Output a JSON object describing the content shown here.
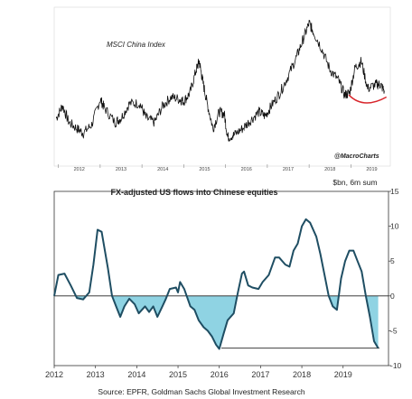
{
  "chart_data": [
    {
      "type": "line",
      "title": "MSCI China Index",
      "annotation": "@MacroCharts",
      "x_tick_labels": [
        "2012",
        "2013",
        "2014",
        "2015",
        "2016",
        "2017",
        "2018",
        "2019"
      ],
      "series": [
        {
          "values": [
            [
              2011.95,
              55
            ],
            [
              2012.1,
              61
            ],
            [
              2012.25,
              53
            ],
            [
              2012.45,
              50
            ],
            [
              2012.6,
              48
            ],
            [
              2012.8,
              52
            ],
            [
              2013.0,
              64
            ],
            [
              2013.1,
              60
            ],
            [
              2013.35,
              53
            ],
            [
              2013.5,
              55
            ],
            [
              2013.7,
              62
            ],
            [
              2013.95,
              62
            ],
            [
              2014.1,
              55
            ],
            [
              2014.3,
              53
            ],
            [
              2014.5,
              61
            ],
            [
              2014.7,
              65
            ],
            [
              2014.9,
              64
            ],
            [
              2015.0,
              63
            ],
            [
              2015.15,
              67
            ],
            [
              2015.3,
              78
            ],
            [
              2015.37,
              82
            ],
            [
              2015.45,
              73
            ],
            [
              2015.55,
              63
            ],
            [
              2015.7,
              50
            ],
            [
              2015.85,
              58
            ],
            [
              2015.97,
              57
            ],
            [
              2016.05,
              46
            ],
            [
              2016.2,
              47
            ],
            [
              2016.4,
              50
            ],
            [
              2016.6,
              54
            ],
            [
              2016.8,
              58
            ],
            [
              2016.95,
              56
            ],
            [
              2017.1,
              61
            ],
            [
              2017.3,
              67
            ],
            [
              2017.5,
              75
            ],
            [
              2017.7,
              84
            ],
            [
              2017.85,
              92
            ],
            [
              2018.0,
              100
            ],
            [
              2018.1,
              96
            ],
            [
              2018.3,
              88
            ],
            [
              2018.5,
              78
            ],
            [
              2018.7,
              73
            ],
            [
              2018.85,
              66
            ],
            [
              2018.97,
              67
            ],
            [
              2019.1,
              79
            ],
            [
              2019.25,
              82
            ],
            [
              2019.4,
              69
            ],
            [
              2019.6,
              71
            ],
            [
              2019.7,
              71
            ],
            [
              2019.8,
              68
            ]
          ]
        }
      ],
      "trend_curve_color": "#d8262c",
      "line_color": "#111111"
    },
    {
      "type": "area",
      "title": "FX-adjusted US flows into Chinese equities",
      "unit_label": "$bn, 6m sum",
      "x_tick_labels": [
        "2012",
        "2013",
        "2014",
        "2015",
        "2016",
        "2017",
        "2018",
        "2019"
      ],
      "y_tick_labels": [
        "15",
        "10",
        "5",
        "0",
        "-5",
        "-10"
      ],
      "xlim": [
        2012,
        2020.1
      ],
      "ylim": [
        -10,
        15
      ],
      "grid": false,
      "zero_line": true,
      "reference_level": -7.5,
      "series": [
        {
          "color": "#1f4e63",
          "fill_below_zero": "#8fd3e3",
          "values": [
            [
              2012.0,
              0
            ],
            [
              2012.1,
              3
            ],
            [
              2012.25,
              3.2
            ],
            [
              2012.4,
              1.5
            ],
            [
              2012.55,
              -0.3
            ],
            [
              2012.7,
              -0.5
            ],
            [
              2012.85,
              0.5
            ],
            [
              2012.95,
              4.5
            ],
            [
              2013.05,
              9.5
            ],
            [
              2013.15,
              9.2
            ],
            [
              2013.3,
              4
            ],
            [
              2013.4,
              0
            ],
            [
              2013.5,
              -1.5
            ],
            [
              2013.6,
              -3
            ],
            [
              2013.7,
              -1.5
            ],
            [
              2013.82,
              -0.4
            ],
            [
              2013.95,
              -1.2
            ],
            [
              2014.05,
              -2.5
            ],
            [
              2014.2,
              -1.5
            ],
            [
              2014.3,
              -2.3
            ],
            [
              2014.4,
              -1.5
            ],
            [
              2014.5,
              -3
            ],
            [
              2014.62,
              -1.5
            ],
            [
              2014.7,
              -0.5
            ],
            [
              2014.8,
              1
            ],
            [
              2014.95,
              1.2
            ],
            [
              2015.0,
              0.5
            ],
            [
              2015.05,
              2
            ],
            [
              2015.15,
              1
            ],
            [
              2015.3,
              -1.5
            ],
            [
              2015.4,
              -2
            ],
            [
              2015.5,
              -3.5
            ],
            [
              2015.62,
              -4.5
            ],
            [
              2015.72,
              -5
            ],
            [
              2015.82,
              -5.8
            ],
            [
              2015.92,
              -7
            ],
            [
              2016.0,
              -7.6
            ],
            [
              2016.1,
              -5.5
            ],
            [
              2016.2,
              -3.5
            ],
            [
              2016.35,
              -2.5
            ],
            [
              2016.45,
              0.5
            ],
            [
              2016.55,
              3.2
            ],
            [
              2016.6,
              3.5
            ],
            [
              2016.7,
              1.5
            ],
            [
              2016.8,
              1.2
            ],
            [
              2016.95,
              1
            ],
            [
              2017.05,
              2
            ],
            [
              2017.2,
              3
            ],
            [
              2017.35,
              5.5
            ],
            [
              2017.45,
              5.5
            ],
            [
              2017.6,
              4.5
            ],
            [
              2017.7,
              4.2
            ],
            [
              2017.8,
              6.5
            ],
            [
              2017.9,
              7.5
            ],
            [
              2018.0,
              10
            ],
            [
              2018.1,
              11
            ],
            [
              2018.2,
              10.5
            ],
            [
              2018.35,
              8.5
            ],
            [
              2018.45,
              6
            ],
            [
              2018.55,
              3
            ],
            [
              2018.65,
              0
            ],
            [
              2018.75,
              -1.5
            ],
            [
              2018.85,
              -2
            ],
            [
              2018.95,
              2.5
            ],
            [
              2019.05,
              5
            ],
            [
              2019.15,
              6.5
            ],
            [
              2019.25,
              6.5
            ],
            [
              2019.35,
              5
            ],
            [
              2019.45,
              3.5
            ],
            [
              2019.55,
              0
            ],
            [
              2019.65,
              -3
            ],
            [
              2019.75,
              -6.5
            ],
            [
              2019.85,
              -7.5
            ]
          ]
        }
      ]
    }
  ],
  "source": "Source: EPFR, Goldman Sachs Global Investment Research"
}
